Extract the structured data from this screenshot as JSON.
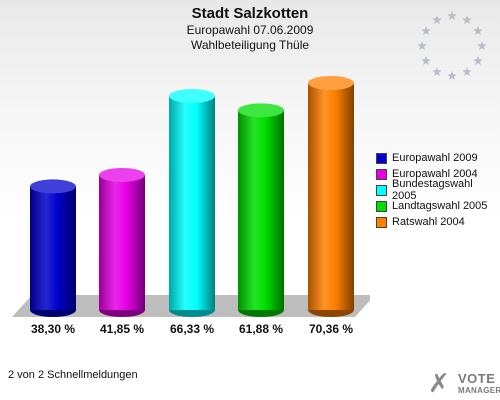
{
  "header": {
    "title": "Stadt Salzkotten",
    "subtitle": "Europawahl 07.06.2009",
    "subtitle2": "Wahlbeteiligung Thüle"
  },
  "chart_data": {
    "type": "bar",
    "categories": [
      "Europawahl 2009",
      "Europawahl 2004",
      "Bundestagswahl 2005",
      "Landtagswahl 2005",
      "Ratswahl 2004"
    ],
    "values": [
      38.3,
      41.85,
      66.33,
      61.88,
      70.36
    ],
    "value_labels": [
      "38,30 %",
      "41,85 %",
      "66,33 %",
      "61,88 %",
      "70,36 %"
    ],
    "colors": [
      "#0000cc",
      "#e600e6",
      "#00ffff",
      "#00dd00",
      "#ff7f00"
    ],
    "ylim": [
      0,
      75
    ],
    "grid": false,
    "legend_position": "right"
  },
  "legend": [
    {
      "label": "Europawahl 2009",
      "color": "#0000cc"
    },
    {
      "label": "Europawahl 2004",
      "color": "#e600e6"
    },
    {
      "label": "Bundestagswahl 2005",
      "color": "#00ffff"
    },
    {
      "label": "Landtagswahl 2005",
      "color": "#00dd00"
    },
    {
      "label": "Ratswahl 2004",
      "color": "#ff7f00"
    }
  ],
  "footer": {
    "note": "2 von 2 Schnellmeldungen",
    "logo_line1": "VOTE",
    "logo_line2": "MANAGER"
  }
}
